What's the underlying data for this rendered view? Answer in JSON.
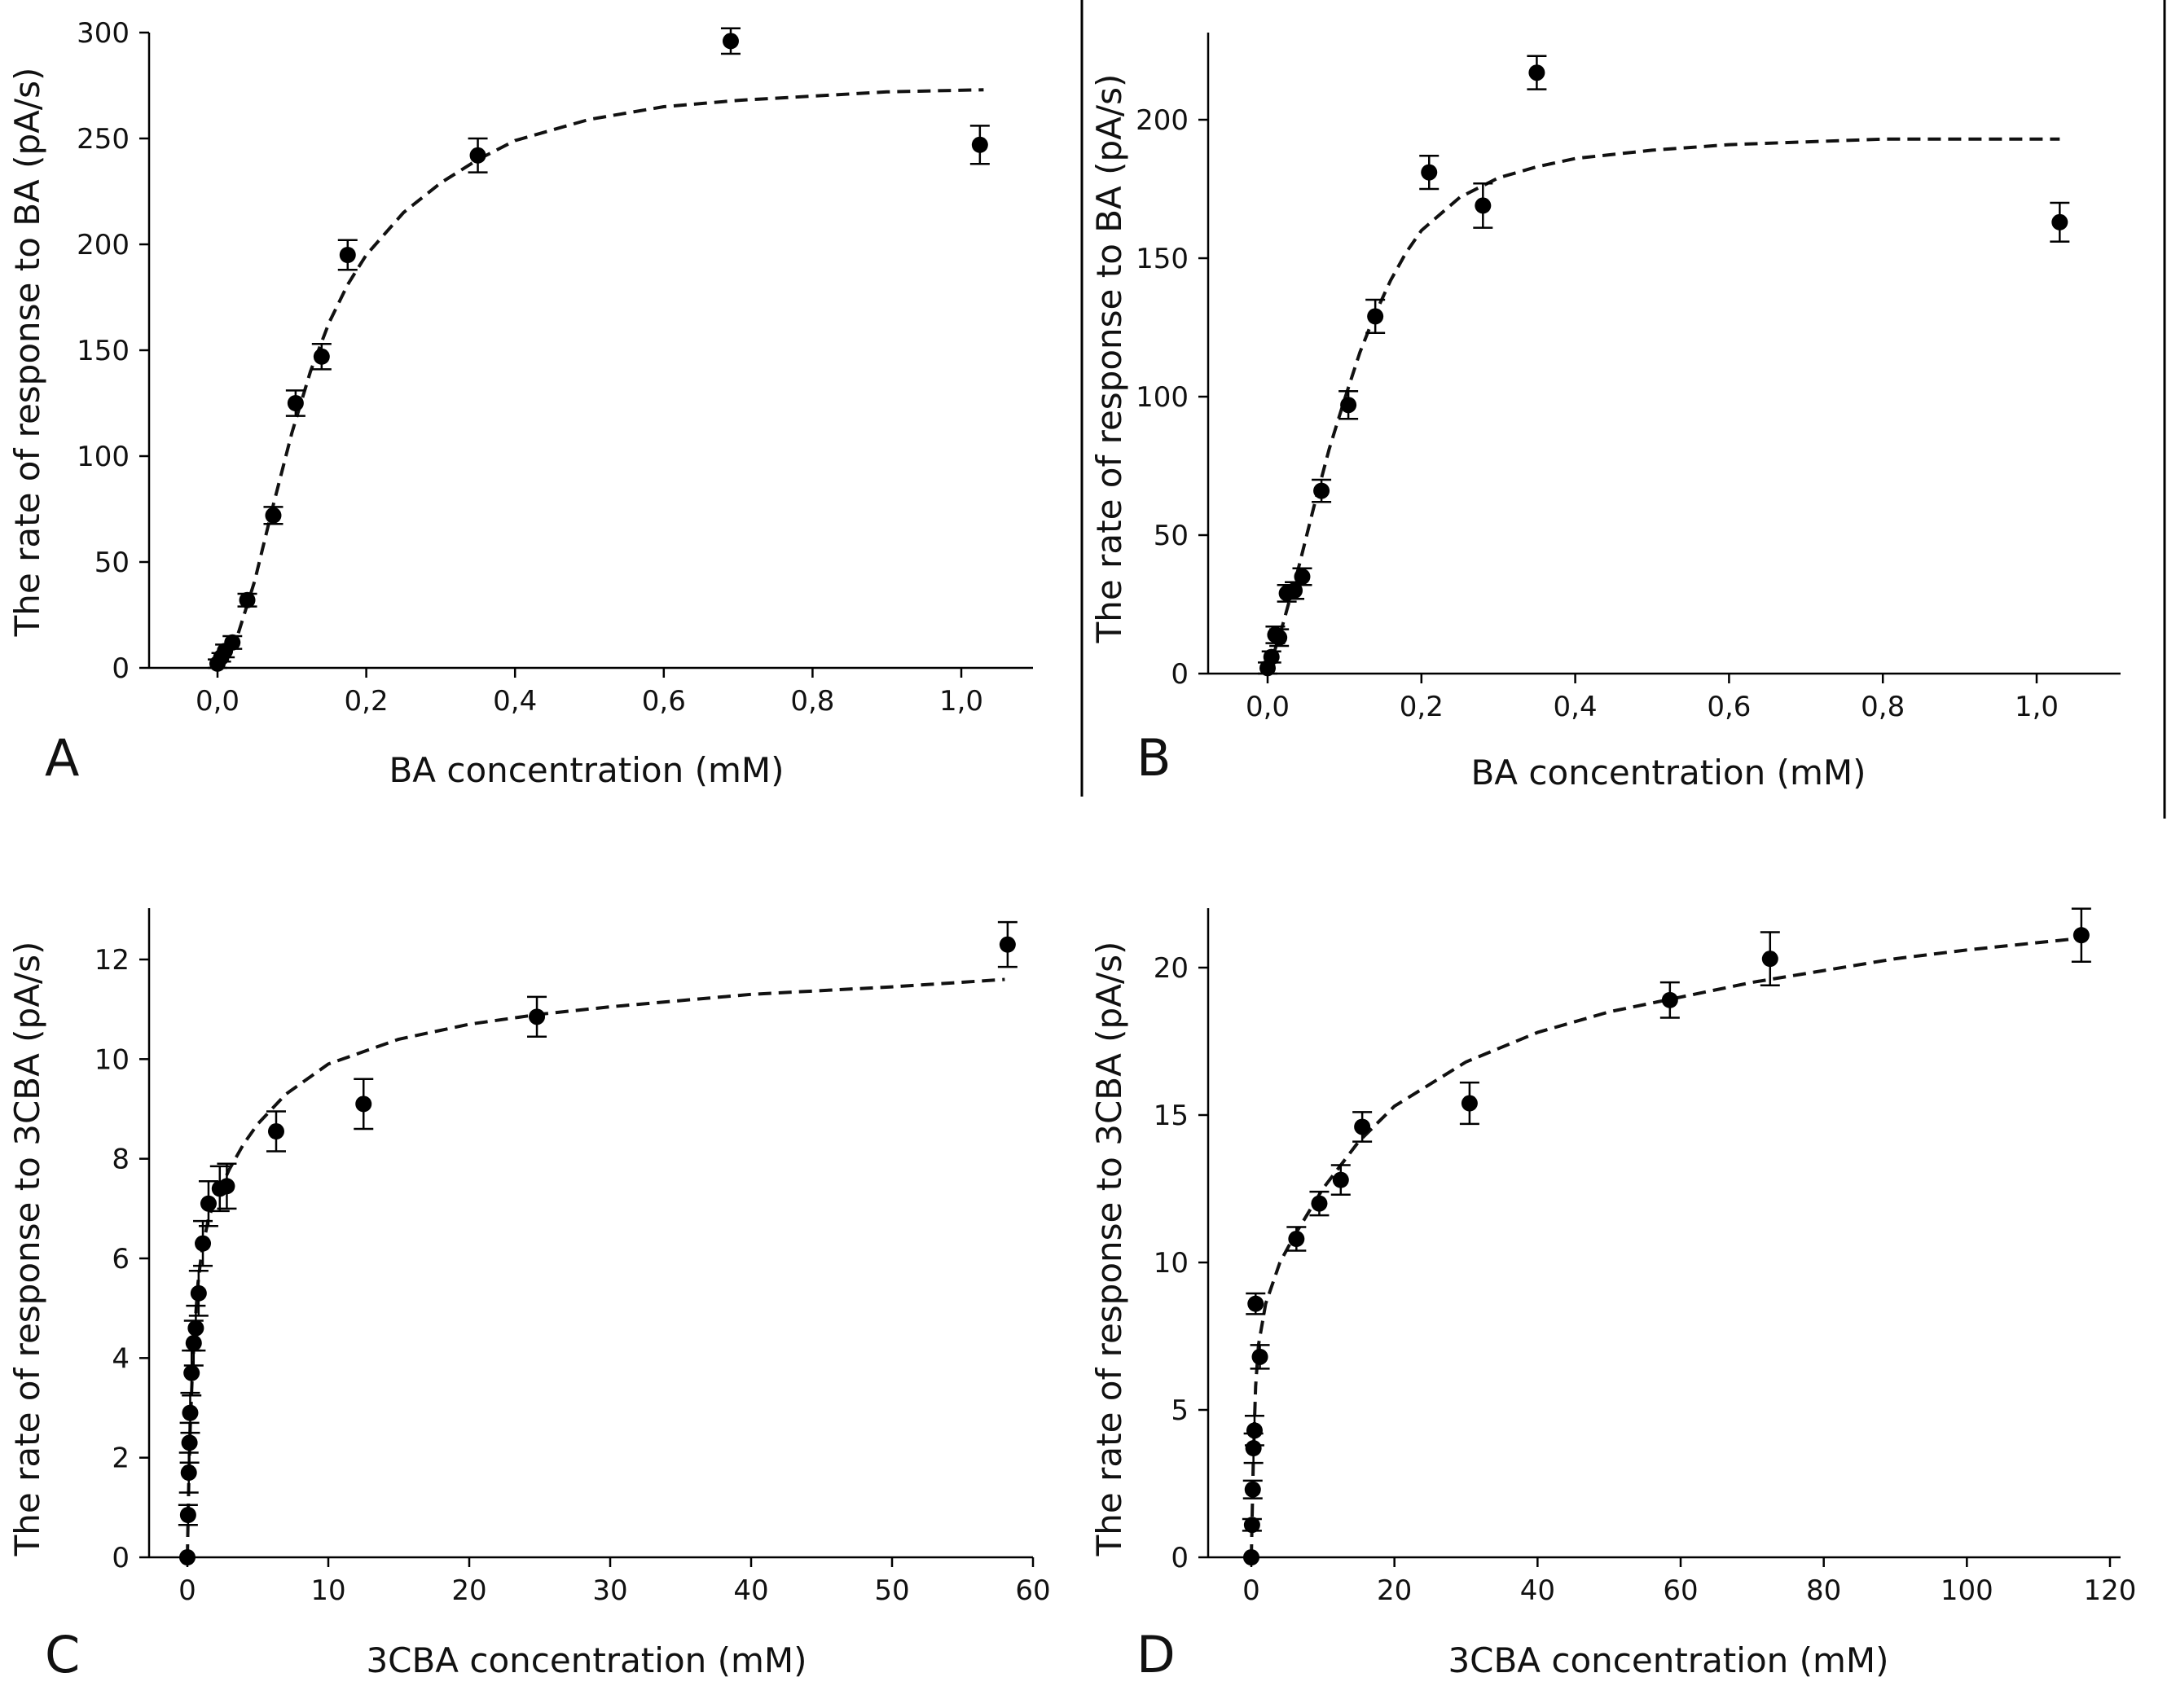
{
  "charts": {
    "A": {
      "letter": "A",
      "xlabel": "BA concentration  (mM)",
      "ylabel": "The  rate  of  response  to  BA  (pA/s)",
      "xticks": [
        "0,0",
        "0,2",
        "0,4",
        "0,6",
        "0,8",
        "1,0"
      ],
      "yticks": [
        "0",
        "50",
        "100",
        "150",
        "200",
        "250",
        "300"
      ]
    },
    "B": {
      "letter": "B",
      "xlabel": "BA concentration  (mM)",
      "ylabel": "The  rate  of  response  to  BA  (pA/s)",
      "xticks": [
        "0,0",
        "0,2",
        "0,4",
        "0,6",
        "0,8",
        "1,0"
      ],
      "yticks": [
        "0",
        "50",
        "100",
        "150",
        "200"
      ]
    },
    "C": {
      "letter": "C",
      "xlabel": "3CBA  concentration  (mM)",
      "ylabel": "The  rate  of  response  to  3CBA  (pA/s)",
      "xticks": [
        "0",
        "10",
        "20",
        "30",
        "40",
        "50",
        "60"
      ],
      "yticks": [
        "0",
        "2",
        "4",
        "6",
        "8",
        "10",
        "12"
      ]
    },
    "D": {
      "letter": "D",
      "xlabel": "3CBA  concentration  (mM)",
      "ylabel": "The  rate  of  response  to  3CBA  (pA/s)",
      "xticks": [
        "0",
        "20",
        "40",
        "60",
        "80",
        "100",
        "120"
      ],
      "yticks": [
        "0",
        "5",
        "10",
        "15",
        "20"
      ]
    }
  },
  "chart_data": [
    {
      "panel": "A",
      "type": "scatter",
      "xlabel": "BA concentration  (mM)",
      "ylabel": "The  rate  of  response  to  BA  (pA/s)",
      "xlim": [
        -0.1,
        1.1
      ],
      "ylim": [
        0,
        300
      ],
      "xtick_values": [
        0,
        0.2,
        0.4,
        0.6,
        0.8,
        1.0
      ],
      "ytick_values": [
        0,
        50,
        100,
        150,
        200,
        250,
        300
      ],
      "grid": false,
      "points": [
        {
          "x": 0.0,
          "y": 2,
          "err": 2
        },
        {
          "x": 0.005,
          "y": 5,
          "err": 2
        },
        {
          "x": 0.01,
          "y": 8,
          "err": 3
        },
        {
          "x": 0.02,
          "y": 12,
          "err": 3
        },
        {
          "x": 0.04,
          "y": 32,
          "err": 3
        },
        {
          "x": 0.075,
          "y": 72,
          "err": 4
        },
        {
          "x": 0.105,
          "y": 125,
          "err": 6
        },
        {
          "x": 0.14,
          "y": 147,
          "err": 6
        },
        {
          "x": 0.175,
          "y": 195,
          "err": 7
        },
        {
          "x": 0.35,
          "y": 242,
          "err": 8
        },
        {
          "x": 0.69,
          "y": 296,
          "err": 6
        },
        {
          "x": 1.025,
          "y": 247,
          "err": 9
        }
      ],
      "fit": {
        "x": [
          0.0,
          0.025,
          0.05,
          0.075,
          0.1,
          0.125,
          0.15,
          0.175,
          0.2,
          0.25,
          0.3,
          0.35,
          0.4,
          0.5,
          0.6,
          0.7,
          0.8,
          0.9,
          1.03
        ],
        "y": [
          0,
          13,
          41,
          77,
          111,
          140,
          163,
          181,
          195,
          215,
          229,
          240,
          249,
          259,
          265,
          268,
          270,
          272,
          273
        ]
      }
    },
    {
      "panel": "B",
      "type": "scatter",
      "xlabel": "BA concentration  (mM)",
      "ylabel": "The  rate  of  response  to  BA  (pA/s)",
      "xlim": [
        -0.08,
        1.1
      ],
      "ylim": [
        0,
        230
      ],
      "xtick_values": [
        0,
        0.2,
        0.4,
        0.6,
        0.8,
        1.0
      ],
      "ytick_values": [
        0,
        50,
        100,
        150,
        200
      ],
      "grid": false,
      "points": [
        {
          "x": 0.0,
          "y": 2,
          "err": 2
        },
        {
          "x": 0.005,
          "y": 6,
          "err": 2
        },
        {
          "x": 0.01,
          "y": 14,
          "err": 3
        },
        {
          "x": 0.015,
          "y": 13,
          "err": 3
        },
        {
          "x": 0.025,
          "y": 29,
          "err": 3
        },
        {
          "x": 0.035,
          "y": 30,
          "err": 3
        },
        {
          "x": 0.045,
          "y": 35,
          "err": 3
        },
        {
          "x": 0.07,
          "y": 66,
          "err": 4
        },
        {
          "x": 0.105,
          "y": 97,
          "err": 5
        },
        {
          "x": 0.14,
          "y": 129,
          "err": 6
        },
        {
          "x": 0.21,
          "y": 181,
          "err": 6
        },
        {
          "x": 0.28,
          "y": 169,
          "err": 8
        },
        {
          "x": 0.35,
          "y": 217,
          "err": 6
        },
        {
          "x": 1.03,
          "y": 163,
          "err": 7
        }
      ],
      "fit": {
        "x": [
          0.0,
          0.02,
          0.04,
          0.06,
          0.08,
          0.1,
          0.12,
          0.14,
          0.16,
          0.18,
          0.2,
          0.25,
          0.3,
          0.35,
          0.4,
          0.5,
          0.6,
          0.7,
          0.8,
          0.9,
          1.03
        ],
        "y": [
          0,
          18,
          38,
          60,
          81,
          99,
          116,
          130,
          142,
          152,
          160,
          172,
          179,
          183,
          186,
          189,
          191,
          192,
          193,
          193,
          193
        ]
      }
    },
    {
      "panel": "C",
      "type": "scatter",
      "xlabel": "3CBA  concentration  (mM)",
      "ylabel": "The  rate  of  response  to  3CBA  (pA/s)",
      "xlim": [
        -4,
        60
      ],
      "ylim": [
        0,
        13
      ],
      "xtick_values": [
        0,
        10,
        20,
        30,
        40,
        50,
        60
      ],
      "ytick_values": [
        0,
        2,
        4,
        6,
        8,
        10,
        12
      ],
      "grid": false,
      "points": [
        {
          "x": 0.0,
          "y": 0.0,
          "err": 0
        },
        {
          "x": 0.05,
          "y": 0.85,
          "err": 0.2
        },
        {
          "x": 0.1,
          "y": 1.7,
          "err": 0.4
        },
        {
          "x": 0.15,
          "y": 2.3,
          "err": 0.4
        },
        {
          "x": 0.2,
          "y": 2.9,
          "err": 0.4
        },
        {
          "x": 0.3,
          "y": 3.7,
          "err": 0.45
        },
        {
          "x": 0.45,
          "y": 4.3,
          "err": 0.45
        },
        {
          "x": 0.6,
          "y": 4.6,
          "err": 0.45
        },
        {
          "x": 0.8,
          "y": 5.3,
          "err": 0.45
        },
        {
          "x": 1.1,
          "y": 6.3,
          "err": 0.45
        },
        {
          "x": 1.5,
          "y": 7.1,
          "err": 0.45
        },
        {
          "x": 2.3,
          "y": 7.4,
          "err": 0.45
        },
        {
          "x": 2.8,
          "y": 7.45,
          "err": 0.45
        },
        {
          "x": 6.3,
          "y": 8.55,
          "err": 0.4
        },
        {
          "x": 12.5,
          "y": 9.1,
          "err": 0.5
        },
        {
          "x": 24.8,
          "y": 10.85,
          "err": 0.4
        },
        {
          "x": 58.2,
          "y": 12.3,
          "err": 0.45
        }
      ],
      "fit": {
        "x": [
          0.0,
          0.1,
          0.2,
          0.35,
          0.5,
          0.75,
          1.0,
          1.5,
          2.0,
          3.0,
          4.0,
          5.0,
          7.0,
          10.0,
          15.0,
          20.0,
          25.0,
          30.0,
          40.0,
          50.0,
          58.0
        ],
        "y": [
          0,
          1.5,
          2.6,
          3.7,
          4.5,
          5.5,
          6.1,
          6.8,
          7.2,
          7.8,
          8.3,
          8.7,
          9.3,
          9.9,
          10.4,
          10.7,
          10.9,
          11.05,
          11.3,
          11.45,
          11.6
        ]
      }
    },
    {
      "panel": "D",
      "type": "scatter",
      "xlabel": "3CBA  concentration  (mM)",
      "ylabel": "The  rate  of  response  to  3CBA  (pA/s)",
      "xlim": [
        -4,
        124
      ],
      "ylim": [
        0,
        22
      ],
      "xtick_values": [
        0,
        20,
        40,
        60,
        80,
        100,
        120
      ],
      "ytick_values": [
        0,
        5,
        10,
        15,
        20
      ],
      "grid": false,
      "points": [
        {
          "x": 0.0,
          "y": 0.0,
          "err": 0
        },
        {
          "x": 0.1,
          "y": 1.1,
          "err": 0.2
        },
        {
          "x": 0.2,
          "y": 2.3,
          "err": 0.3
        },
        {
          "x": 0.3,
          "y": 3.7,
          "err": 0.5
        },
        {
          "x": 0.45,
          "y": 4.3,
          "err": 0.5
        },
        {
          "x": 0.6,
          "y": 8.6,
          "err": 0.35
        },
        {
          "x": 1.2,
          "y": 6.8,
          "err": 0.4
        },
        {
          "x": 6.3,
          "y": 10.8,
          "err": 0.4
        },
        {
          "x": 9.5,
          "y": 12.0,
          "err": 0.4
        },
        {
          "x": 12.5,
          "y": 12.8,
          "err": 0.5
        },
        {
          "x": 15.5,
          "y": 14.6,
          "err": 0.5
        },
        {
          "x": 30.5,
          "y": 15.4,
          "err": 0.7
        },
        {
          "x": 58.5,
          "y": 18.9,
          "err": 0.6
        },
        {
          "x": 72.5,
          "y": 20.3,
          "err": 0.9
        },
        {
          "x": 116.0,
          "y": 21.1,
          "err": 0.9
        }
      ],
      "fit": {
        "x": [
          0.0,
          0.3,
          0.6,
          1.0,
          2.0,
          4.0,
          6.0,
          10.0,
          15.0,
          20.0,
          30.0,
          40.0,
          50.0,
          60.0,
          70.0,
          80.0,
          90.0,
          100.0,
          116.0
        ],
        "y": [
          0,
          3.5,
          5.8,
          7.2,
          8.6,
          10.0,
          10.9,
          12.5,
          14.1,
          15.3,
          16.8,
          17.8,
          18.5,
          19.0,
          19.5,
          19.9,
          20.3,
          20.6,
          21.0
        ]
      }
    }
  ]
}
